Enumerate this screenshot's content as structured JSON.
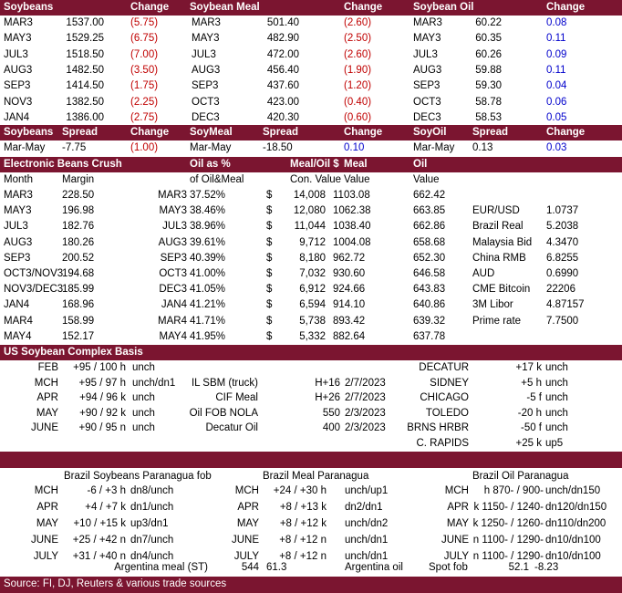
{
  "futures": {
    "headers": [
      "Soybeans",
      "Change",
      "Soybean Meal",
      "",
      "Change",
      "Soybean Oil",
      "",
      "Change"
    ],
    "rows": [
      {
        "s": [
          "MAR3",
          "1537.00",
          "(5.75)"
        ],
        "m": [
          "MAR3",
          "501.40",
          "(2.60)"
        ],
        "o": [
          "MAR3",
          "60.22",
          "0.08"
        ]
      },
      {
        "s": [
          "MAY3",
          "1529.25",
          "(6.75)"
        ],
        "m": [
          "MAY3",
          "482.90",
          "(2.50)"
        ],
        "o": [
          "MAY3",
          "60.35",
          "0.11"
        ]
      },
      {
        "s": [
          "JUL3",
          "1518.50",
          "(7.00)"
        ],
        "m": [
          "JUL3",
          "472.00",
          "(2.60)"
        ],
        "o": [
          "JUL3",
          "60.26",
          "0.09"
        ]
      },
      {
        "s": [
          "AUG3",
          "1482.50",
          "(3.50)"
        ],
        "m": [
          "AUG3",
          "456.40",
          "(1.90)"
        ],
        "o": [
          "AUG3",
          "59.88",
          "0.11"
        ]
      },
      {
        "s": [
          "SEP3",
          "1414.50",
          "(1.75)"
        ],
        "m": [
          "SEP3",
          "437.60",
          "(1.20)"
        ],
        "o": [
          "SEP3",
          "59.30",
          "0.04"
        ]
      },
      {
        "s": [
          "NOV3",
          "1382.50",
          "(2.25)"
        ],
        "m": [
          "OCT3",
          "423.00",
          "(0.40)"
        ],
        "o": [
          "OCT3",
          "58.78",
          "0.06"
        ]
      },
      {
        "s": [
          "JAN4",
          "1386.00",
          "(2.75)"
        ],
        "m": [
          "DEC3",
          "420.30",
          "(0.60)"
        ],
        "o": [
          "DEC3",
          "58.53",
          "0.05"
        ]
      }
    ]
  },
  "spreads": {
    "headers": [
      "Soybeans",
      "Spread",
      "Change",
      "SoyMeal",
      "Spread",
      "Change",
      "SoyOil",
      "Spread",
      "Change"
    ],
    "row": [
      "Mar-May",
      "-7.75",
      "(1.00)",
      "Mar-May",
      "-18.50",
      "0.10",
      "Mar-May",
      "0.13",
      "0.03"
    ]
  },
  "crush": {
    "band": [
      "Electronic Beans Crush",
      "Oil as %",
      "Meal/Oil $",
      "Meal",
      "Oil"
    ],
    "subheaders": [
      "Month",
      "Margin",
      "of Oil&Meal",
      "Con. Value",
      "Value",
      "Value"
    ],
    "rows": [
      {
        "m": "MAR3",
        "mg": "228.50",
        "m2": "MAR3",
        "pct": "37.52%",
        "d": "$",
        "cv": "14,008",
        "mv": "1103.08",
        "ov": "662.42",
        "k": "",
        "v": ""
      },
      {
        "m": "MAY3",
        "mg": "196.98",
        "m2": "MAY3",
        "pct": "38.46%",
        "d": "$",
        "cv": "12,080",
        "mv": "1062.38",
        "ov": "663.85",
        "k": "EUR/USD",
        "v": "1.0737"
      },
      {
        "m": "JUL3",
        "mg": "182.76",
        "m2": "JUL3",
        "pct": "38.96%",
        "d": "$",
        "cv": "11,044",
        "mv": "1038.40",
        "ov": "662.86",
        "k": "Brazil Real",
        "v": "5.2038"
      },
      {
        "m": "AUG3",
        "mg": "180.26",
        "m2": "AUG3",
        "pct": "39.61%",
        "d": "$",
        "cv": "9,712",
        "mv": "1004.08",
        "ov": "658.68",
        "k": "Malaysia Bid",
        "v": "4.3470"
      },
      {
        "m": "SEP3",
        "mg": "200.52",
        "m2": "SEP3",
        "pct": "40.39%",
        "d": "$",
        "cv": "8,180",
        "mv": "962.72",
        "ov": "652.30",
        "k": "China RMB",
        "v": "6.8255"
      },
      {
        "m": "OCT3/NOV3",
        "mg": "194.68",
        "m2": "OCT3",
        "pct": "41.00%",
        "d": "$",
        "cv": "7,032",
        "mv": "930.60",
        "ov": "646.58",
        "k": "AUD",
        "v": "0.6990"
      },
      {
        "m": "NOV3/DEC3",
        "mg": "185.99",
        "m2": "DEC3",
        "pct": "41.05%",
        "d": "$",
        "cv": "6,912",
        "mv": "924.66",
        "ov": "643.83",
        "k": "CME Bitcoin",
        "v": "22206"
      },
      {
        "m": "JAN4",
        "mg": "168.96",
        "m2": "JAN4",
        "pct": "41.21%",
        "d": "$",
        "cv": "6,594",
        "mv": "914.10",
        "ov": "640.86",
        "k": "3M Libor",
        "v": "4.87157"
      },
      {
        "m": "MAR4",
        "mg": "158.99",
        "m2": "MAR4",
        "pct": "41.71%",
        "d": "$",
        "cv": "5,738",
        "mv": "893.42",
        "ov": "639.32",
        "k": "Prime rate",
        "v": "7.7500"
      },
      {
        "m": "MAY4",
        "mg": "152.17",
        "m2": "MAY4",
        "pct": "41.95%",
        "d": "$",
        "cv": "5,332",
        "mv": "882.64",
        "ov": "637.78",
        "k": "",
        "v": ""
      }
    ]
  },
  "basis": {
    "title": "US Soybean Complex Basis",
    "rows": [
      {
        "m": "FEB",
        "v": "+95 / 100 h",
        "t": "unch",
        "n": "",
        "p": "",
        "d": "",
        "c": "DECATUR",
        "cv": "+17 k",
        "ct": "unch"
      },
      {
        "m": "MCH",
        "v": "+95 / 97 h",
        "t": "unch/dn1",
        "n": "IL SBM (truck)",
        "p": "H+16",
        "d": "2/7/2023",
        "c": "SIDNEY",
        "cv": "+5 h",
        "ct": "unch"
      },
      {
        "m": "APR",
        "v": "+94 / 96 k",
        "t": "unch",
        "n": "CIF Meal",
        "p": "H+26",
        "d": "2/7/2023",
        "c": "CHICAGO",
        "cv": "-5 f",
        "ct": "unch"
      },
      {
        "m": "MAY",
        "v": "+90 / 92 k",
        "t": "unch",
        "n": "Oil FOB NOLA",
        "p": "550",
        "d": "2/3/2023",
        "c": "TOLEDO",
        "cv": "-20 h",
        "ct": "unch"
      },
      {
        "m": "JUNE",
        "v": "+90 / 95 n",
        "t": "unch",
        "n": "Decatur Oil",
        "p": "400",
        "d": "2/3/2023",
        "c": "BRNS HRBR",
        "cv": "-50 f",
        "ct": "unch"
      },
      {
        "m": "",
        "v": "",
        "t": "",
        "n": "",
        "p": "",
        "d": "",
        "c": "C. RAPIDS",
        "cv": "+25 k",
        "ct": "up5"
      }
    ]
  },
  "brazil": {
    "titles": [
      "Brazil Soybeans Paranagua fob",
      "Brazil Meal Paranagua",
      "Brazil Oil Paranagua"
    ],
    "rows": [
      {
        "s": [
          "MCH",
          "-6 / +3 h",
          "dn8/unch"
        ],
        "m": [
          "MCH",
          "+24 / +30 h",
          "unch/up1"
        ],
        "o": [
          "MCH",
          "-900 / -870 h",
          "unch/dn150"
        ]
      },
      {
        "s": [
          "APR",
          "+4 / +7 k",
          "dn1/unch"
        ],
        "m": [
          "APR",
          "+8 / +13 k",
          "dn2/dn1"
        ],
        "o": [
          "APR",
          "-1240 / -1150 k",
          "dn120/dn150"
        ]
      },
      {
        "s": [
          "MAY",
          "+10 / +15 k",
          "up3/dn1"
        ],
        "m": [
          "MAY",
          "+8 / +12 k",
          "unch/dn2"
        ],
        "o": [
          "MAY",
          "-1260 / -1250 k",
          "dn110/dn200"
        ]
      },
      {
        "s": [
          "JUNE",
          "+25 / +42 n",
          "dn7/unch"
        ],
        "m": [
          "JUNE",
          "+8 / +12 n",
          "unch/dn1"
        ],
        "o": [
          "JUNE",
          "-1290 / -1100 n",
          "dn10/dn100"
        ]
      },
      {
        "s": [
          "JULY",
          "+31 / +40 n",
          "dn4/unch"
        ],
        "m": [
          "JULY",
          "+8 / +12 n",
          "unch/dn1"
        ],
        "o": [
          "JULY",
          "-1290 / -1100 n",
          "dn10/dn100"
        ]
      }
    ],
    "argentina": [
      "Argentina meal (ST)",
      "544",
      "61.3",
      "Argentina oil",
      "Spot fob",
      "52.1",
      "-8.23"
    ]
  },
  "source": "Source: FI, DJ, Reuters & various trade sources"
}
